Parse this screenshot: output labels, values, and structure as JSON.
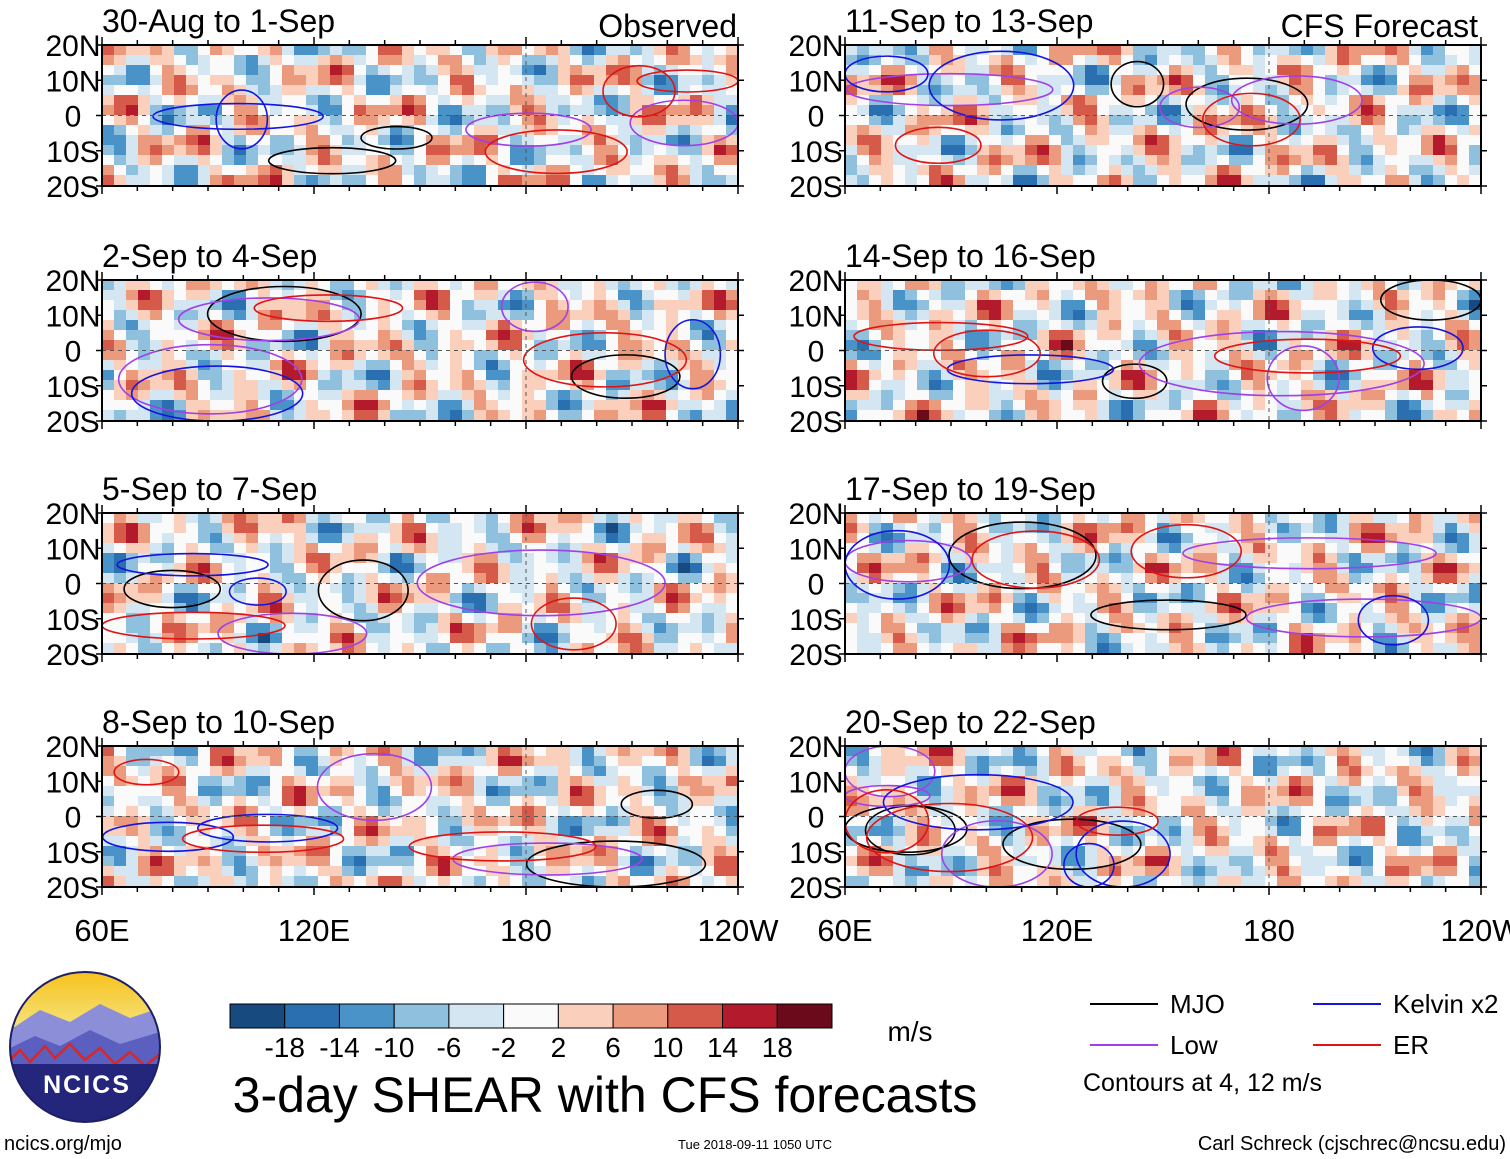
{
  "figure": {
    "main_title": "3-day SHEAR with CFS forecasts",
    "observed_label": "Observed",
    "forecast_label": "CFS Forecast",
    "units": "m/s",
    "website": "ncics.org/mjo",
    "timestamp": "Tue 2018-09-11 1050 UTC",
    "credit": "Carl Schreck (cjschrec@ncsu.edu)",
    "logo_text": "NCICS",
    "contour_note": "Contours at 4, 12 m/s"
  },
  "chart_data": {
    "type": "heatmap",
    "variable": "vertical wind shear anomaly",
    "units": "m/s",
    "x_ticks": [
      "60E",
      "120E",
      "180",
      "120W"
    ],
    "y_ticks": [
      "20N",
      "10N",
      "0",
      "10S",
      "20S"
    ],
    "xlim_deg_east": [
      60,
      240
    ],
    "ylim_deg_north": [
      -20,
      20
    ],
    "colorbar": {
      "levels": [
        -18,
        -14,
        -10,
        -6,
        -2,
        2,
        6,
        10,
        14,
        18
      ],
      "tick_labels": [
        "-18",
        "-14",
        "-10",
        "-6",
        "-2",
        "2",
        "6",
        "10",
        "14",
        "18"
      ],
      "colors": [
        "#174a7e",
        "#2a6fb0",
        "#4a93c8",
        "#8fc1de",
        "#d3e6f2",
        "#fafafa",
        "#fad0bd",
        "#eb9a7d",
        "#d65a4a",
        "#b31b2c",
        "#6b0a1a"
      ]
    },
    "legend": [
      {
        "label": "MJO",
        "color": "#000000"
      },
      {
        "label": "Kelvin x2",
        "color": "#1414e0"
      },
      {
        "label": "Low",
        "color": "#a040e8"
      },
      {
        "label": "ER",
        "color": "#e01414"
      }
    ],
    "panels": [
      {
        "label": "30-Aug to 1-Sep",
        "kind": "Observed"
      },
      {
        "label": "2-Sep to 4-Sep",
        "kind": "Observed"
      },
      {
        "label": "5-Sep to 7-Sep",
        "kind": "Observed"
      },
      {
        "label": "8-Sep to 10-Sep",
        "kind": "Observed"
      },
      {
        "label": "11-Sep to 13-Sep",
        "kind": "CFS Forecast"
      },
      {
        "label": "14-Sep to 16-Sep",
        "kind": "CFS Forecast"
      },
      {
        "label": "17-Sep to 19-Sep",
        "kind": "CFS Forecast"
      },
      {
        "label": "20-Sep to 22-Sep",
        "kind": "CFS Forecast"
      }
    ]
  }
}
